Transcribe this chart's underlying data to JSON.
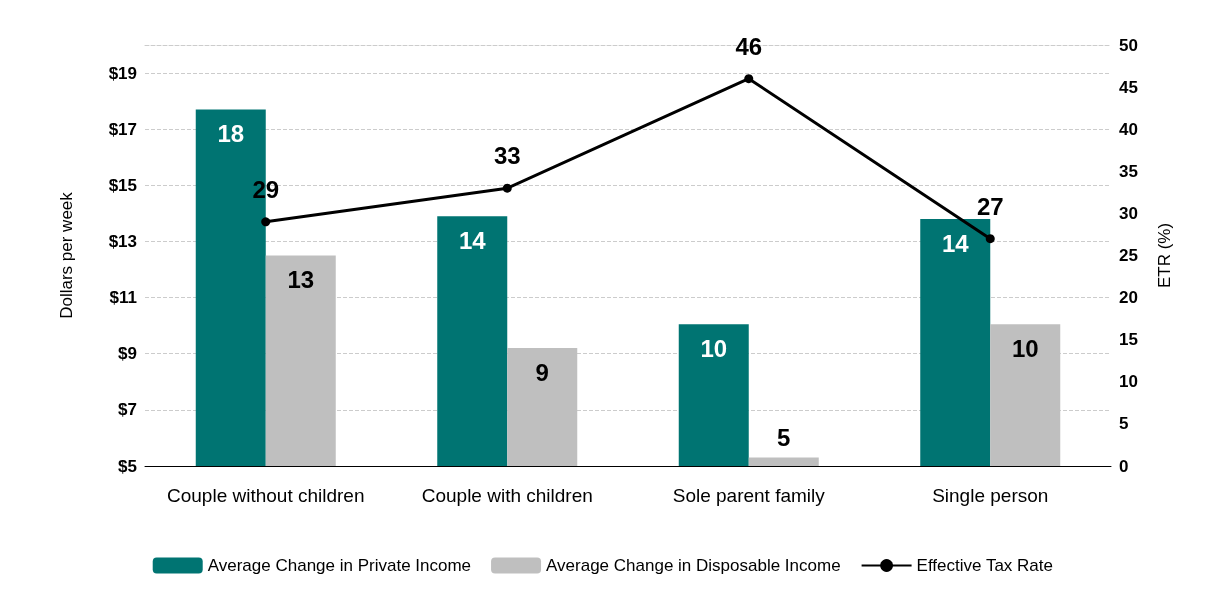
{
  "chart_data": {
    "type": "bar",
    "categories": [
      "Couple without children",
      "Couple with children",
      "Sole parent family",
      "Single person"
    ],
    "ylabel": "Dollars per week",
    "y2label": "ETR (%)",
    "ylim": [
      5,
      20
    ],
    "yticks": [
      {
        "value": 5,
        "label": "$5"
      },
      {
        "value": 7,
        "label": "$7"
      },
      {
        "value": 9,
        "label": "$9"
      },
      {
        "value": 11,
        "label": "$11"
      },
      {
        "value": 13,
        "label": "$13"
      },
      {
        "value": 15,
        "label": "$15"
      },
      {
        "value": 17,
        "label": "$17"
      },
      {
        "value": 19,
        "label": "$19"
      }
    ],
    "y2lim": [
      0,
      50
    ],
    "y2ticks": [
      0,
      5,
      10,
      15,
      20,
      25,
      30,
      35,
      40,
      45,
      50
    ],
    "grid": "y",
    "legend": "bottom",
    "marker": "circle",
    "line_style": "solid",
    "series": [
      {
        "name": "Average Change in Private Income",
        "color": "#007472",
        "values": [
          17.7,
          13.9,
          10.05,
          13.8
        ],
        "value_labels": [
          "18",
          "14",
          "10",
          "14"
        ]
      },
      {
        "name": "Average Change in Disposable Income",
        "color": "#bfbfbf",
        "values": [
          12.5,
          9.2,
          5.3,
          10.05
        ],
        "value_labels": [
          "13",
          "9",
          "5",
          "10"
        ]
      },
      {
        "name": "Effective Tax Rate",
        "type": "line",
        "axis": "y2",
        "color": "#000000",
        "values": [
          29,
          33,
          46,
          27
        ],
        "value_labels": [
          "29",
          "33",
          "46",
          "27"
        ]
      }
    ]
  }
}
